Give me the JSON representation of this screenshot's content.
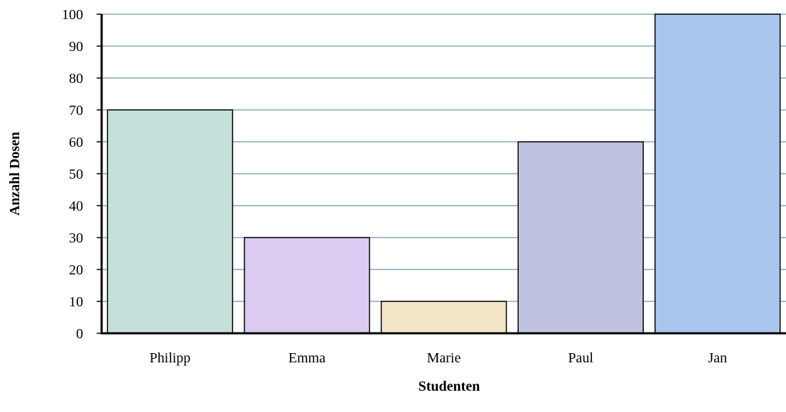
{
  "chart_data": {
    "type": "bar",
    "categories": [
      "Philipp",
      "Emma",
      "Marie",
      "Paul",
      "Jan"
    ],
    "values": [
      70,
      30,
      10,
      60,
      100
    ],
    "colors": [
      "#c5dfda",
      "#dccbf1",
      "#f2e5c8",
      "#c0c3e0",
      "#a9c6ef"
    ],
    "title": "",
    "xlabel": "Studenten",
    "ylabel": "Anzahl Dosen",
    "ylim": [
      0,
      100
    ],
    "yticks": [
      0,
      10,
      20,
      30,
      40,
      50,
      60,
      70,
      80,
      90,
      100
    ],
    "grid": true,
    "gridColor": "#6f93ad"
  }
}
